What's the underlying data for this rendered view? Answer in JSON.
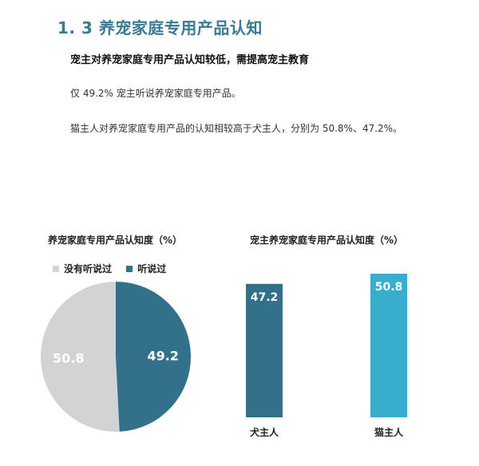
{
  "header": {
    "title": "1. 3 养宠家庭专用产品认知",
    "subtitle": "宠主对养宠家庭专用产品认知较低，需提高宠主教育",
    "paragraph_1": "仅 49.2% 宠主听说养宠家庭专用产品。",
    "paragraph_2": "猫主人对养宠家庭专用产品的认知相较高于犬主人，分别为 50.8%、47.2%。"
  },
  "colors": {
    "title": "#3a7a94",
    "grey": "#d2d3d5",
    "dark_blue": "#33708a",
    "light_blue": "#38aecf"
  },
  "chart_data": [
    {
      "type": "pie",
      "title": "养宠家庭专用产品认知度（%）",
      "legend_position": "top-left",
      "slices": [
        {
          "name": "没有听说过",
          "value": 50.8,
          "label": "50.8",
          "color": "#d2d3d5"
        },
        {
          "name": "听说过",
          "value": 49.2,
          "label": "49.2",
          "color": "#33708a"
        }
      ]
    },
    {
      "type": "bar",
      "title": "宠主养宠家庭专用产品认知度（%）",
      "categories": [
        "犬主人",
        "猫主人"
      ],
      "values": [
        47.2,
        50.8
      ],
      "labels": [
        "47.2",
        "50.8"
      ],
      "colors": [
        "#33708a",
        "#38aecf"
      ],
      "grid": false
    }
  ]
}
